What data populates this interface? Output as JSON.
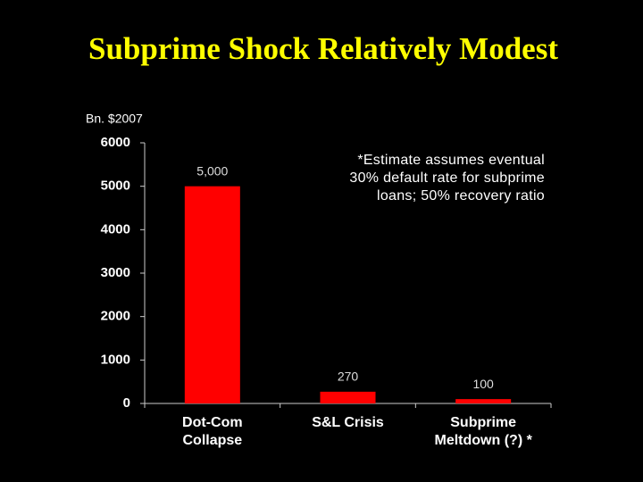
{
  "chart_data": {
    "type": "bar",
    "title": "Subprime Shock Relatively Modest",
    "y_label": "Bn. $2007",
    "categories": [
      "Dot-Com\nCollapse",
      "S&L Crisis",
      "Subprime\nMeltdown (?) *"
    ],
    "values": [
      5000,
      270,
      100
    ],
    "value_labels": [
      "5,000",
      "270",
      "100"
    ],
    "color": "#ff0000",
    "ylim": [
      0,
      6000
    ],
    "yticks": [
      0,
      1000,
      2000,
      3000,
      4000,
      5000,
      6000
    ],
    "annotation": "*Estimate assumes eventual\n30% default rate for subprime\nloans; 50% recovery ratio"
  }
}
